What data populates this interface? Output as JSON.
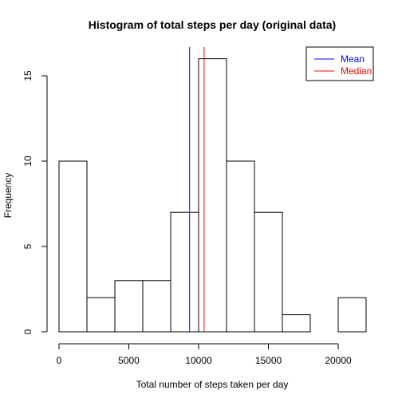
{
  "chart_data": {
    "type": "bar",
    "title": "Histogram of total steps per day (original data)",
    "xlabel": "Total number of steps taken per day",
    "ylabel": "Frequency",
    "bin_edges": [
      0,
      2000,
      4000,
      6000,
      8000,
      10000,
      12000,
      14000,
      16000,
      18000,
      20000,
      22000
    ],
    "values": [
      10,
      2,
      3,
      3,
      7,
      16,
      10,
      7,
      1,
      0,
      2
    ],
    "xlim": [
      0,
      22000
    ],
    "ylim": [
      0,
      16
    ],
    "x_ticks": [
      0,
      5000,
      10000,
      15000,
      20000
    ],
    "y_ticks": [
      0,
      5,
      10,
      15
    ],
    "grid": false,
    "bar_fill": "#ffffff",
    "bar_stroke": "#000000",
    "reference_lines": [
      {
        "name": "Mean",
        "value": 9354,
        "color": "#0000ff"
      },
      {
        "name": "Median",
        "value": 10395,
        "color": "#ff0000"
      }
    ],
    "legend_position": "top-right"
  }
}
